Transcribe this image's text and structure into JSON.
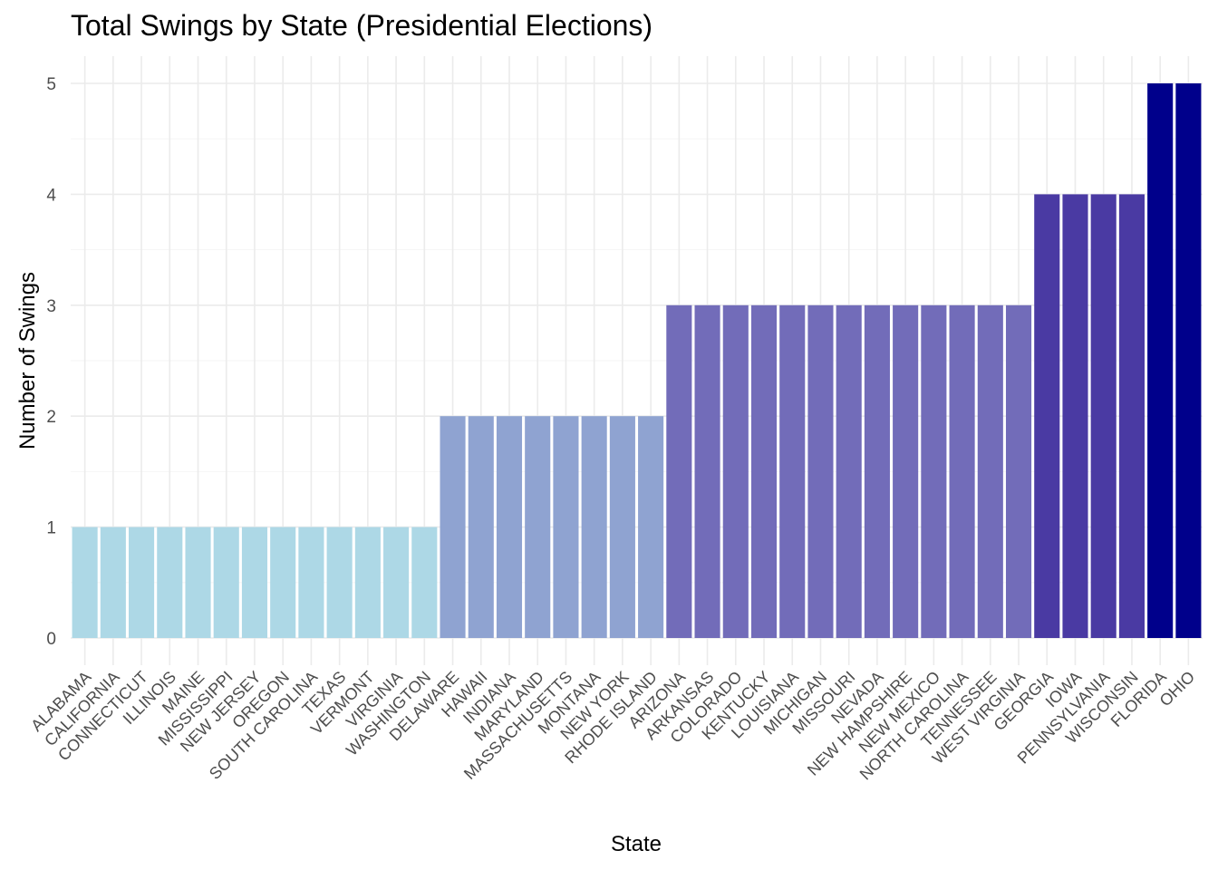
{
  "chart_data": {
    "type": "bar",
    "title": "Total Swings by State (Presidential Elections)",
    "xlabel": "State",
    "ylabel": "Number of Swings",
    "ylim": [
      -0.2,
      5.2
    ],
    "yticks": [
      0,
      1,
      2,
      3,
      4,
      5
    ],
    "grid": true,
    "categories": [
      "ALABAMA",
      "CALIFORNIA",
      "CONNECTICUT",
      "ILLINOIS",
      "MAINE",
      "MISSISSIPPI",
      "NEW JERSEY",
      "OREGON",
      "SOUTH CAROLINA",
      "TEXAS",
      "VERMONT",
      "VIRGINIA",
      "WASHINGTON",
      "DELAWARE",
      "HAWAII",
      "INDIANA",
      "MARYLAND",
      "MASSACHUSETTS",
      "MONTANA",
      "NEW YORK",
      "RHODE ISLAND",
      "ARIZONA",
      "ARKANSAS",
      "COLORADO",
      "KENTUCKY",
      "LOUISIANA",
      "MICHIGAN",
      "MISSOURI",
      "NEVADA",
      "NEW HAMPSHIRE",
      "NEW MEXICO",
      "NORTH CAROLINA",
      "TENNESSEE",
      "WEST VIRGINIA",
      "GEORGIA",
      "IOWA",
      "PENNSYLVANIA",
      "WISCONSIN",
      "FLORIDA",
      "OHIO"
    ],
    "values": [
      1,
      1,
      1,
      1,
      1,
      1,
      1,
      1,
      1,
      1,
      1,
      1,
      1,
      2,
      2,
      2,
      2,
      2,
      2,
      2,
      2,
      3,
      3,
      3,
      3,
      3,
      3,
      3,
      3,
      3,
      3,
      3,
      3,
      3,
      4,
      4,
      4,
      4,
      5,
      5
    ],
    "color_scale": {
      "1": "#add8e6",
      "2": "#8fa3d1",
      "3": "#726cb9",
      "4": "#4a3aa3",
      "5": "#00008b"
    }
  }
}
